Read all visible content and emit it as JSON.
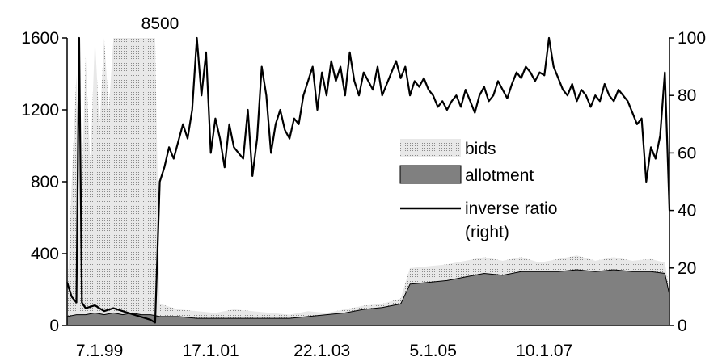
{
  "chart_data": {
    "type": "area",
    "title": "",
    "xlabel": "",
    "ylabel": "",
    "x_ticks": [
      "7.1.99",
      "17.1.01",
      "22.1.03",
      "5.1.05",
      "10.1.07"
    ],
    "y_left": {
      "min": 0,
      "max": 1600,
      "ticks": [
        0,
        400,
        800,
        1200,
        1600
      ]
    },
    "y_right": {
      "min": 0,
      "max": 100,
      "ticks": [
        0,
        20,
        40,
        60,
        80,
        100
      ]
    },
    "annotation": "8500",
    "legend": [
      "bids",
      "allotment",
      "inverse ratio\n(right)"
    ],
    "legend_lines": [
      "bids",
      "allotment",
      "inverse ratio",
      "(right)"
    ],
    "series": [
      {
        "name": "bids",
        "axis": "left",
        "color": "#c0c0c0",
        "points": [
          [
            0,
            100
          ],
          [
            0.5,
            800
          ],
          [
            1,
            1400
          ],
          [
            1.5,
            600
          ],
          [
            2,
            1500
          ],
          [
            2.5,
            900
          ],
          [
            3,
            1600
          ],
          [
            3.5,
            1100
          ],
          [
            4,
            1600
          ],
          [
            4.5,
            1200
          ],
          [
            5,
            1600
          ],
          [
            5.5,
            1600
          ],
          [
            6,
            1600
          ],
          [
            6.5,
            1600
          ],
          [
            7,
            1600
          ],
          [
            7.5,
            1600
          ],
          [
            8,
            1600
          ],
          [
            8.5,
            1600
          ],
          [
            9,
            1600
          ],
          [
            9.5,
            1600
          ],
          [
            10,
            120
          ],
          [
            12,
            90
          ],
          [
            14,
            80
          ],
          [
            16,
            70
          ],
          [
            18,
            90
          ],
          [
            20,
            80
          ],
          [
            22,
            70
          ],
          [
            24,
            60
          ],
          [
            26,
            80
          ],
          [
            28,
            70
          ],
          [
            30,
            90
          ],
          [
            32,
            110
          ],
          [
            34,
            120
          ],
          [
            36,
            150
          ],
          [
            37,
            320
          ],
          [
            39,
            330
          ],
          [
            41,
            340
          ],
          [
            43,
            360
          ],
          [
            45,
            380
          ],
          [
            47,
            360
          ],
          [
            49,
            380
          ],
          [
            51,
            350
          ],
          [
            53,
            370
          ],
          [
            55,
            390
          ],
          [
            57,
            360
          ],
          [
            59,
            380
          ],
          [
            61,
            360
          ],
          [
            63,
            370
          ],
          [
            64.5,
            350
          ],
          [
            65,
            200
          ]
        ]
      },
      {
        "name": "allotment",
        "axis": "left",
        "color": "#808080",
        "points": [
          [
            0,
            50
          ],
          [
            1,
            60
          ],
          [
            2,
            60
          ],
          [
            3,
            70
          ],
          [
            4,
            60
          ],
          [
            5,
            70
          ],
          [
            6,
            60
          ],
          [
            7,
            70
          ],
          [
            8,
            60
          ],
          [
            9,
            60
          ],
          [
            10,
            50
          ],
          [
            12,
            50
          ],
          [
            14,
            40
          ],
          [
            16,
            40
          ],
          [
            18,
            40
          ],
          [
            20,
            40
          ],
          [
            22,
            40
          ],
          [
            24,
            40
          ],
          [
            26,
            50
          ],
          [
            28,
            60
          ],
          [
            30,
            70
          ],
          [
            32,
            90
          ],
          [
            34,
            100
          ],
          [
            36,
            120
          ],
          [
            37,
            230
          ],
          [
            39,
            240
          ],
          [
            41,
            250
          ],
          [
            43,
            270
          ],
          [
            45,
            290
          ],
          [
            47,
            280
          ],
          [
            49,
            300
          ],
          [
            51,
            300
          ],
          [
            53,
            300
          ],
          [
            55,
            310
          ],
          [
            57,
            300
          ],
          [
            59,
            310
          ],
          [
            61,
            300
          ],
          [
            63,
            300
          ],
          [
            64.5,
            290
          ],
          [
            65,
            170
          ]
        ]
      },
      {
        "name": "inverse ratio (right)",
        "axis": "right",
        "color": "#000000",
        "points": [
          [
            0,
            15
          ],
          [
            0.5,
            10
          ],
          [
            1,
            8
          ],
          [
            1.3,
            100
          ],
          [
            1.6,
            8
          ],
          [
            2,
            6
          ],
          [
            3,
            7
          ],
          [
            4,
            5
          ],
          [
            5,
            6
          ],
          [
            6,
            5
          ],
          [
            7,
            4
          ],
          [
            8,
            3
          ],
          [
            9,
            2
          ],
          [
            9.5,
            1
          ],
          [
            10,
            50
          ],
          [
            10.5,
            55
          ],
          [
            11,
            62
          ],
          [
            11.5,
            58
          ],
          [
            12,
            64
          ],
          [
            12.5,
            70
          ],
          [
            13,
            65
          ],
          [
            13.5,
            75
          ],
          [
            14,
            100
          ],
          [
            14.5,
            80
          ],
          [
            15,
            95
          ],
          [
            15.5,
            60
          ],
          [
            16,
            72
          ],
          [
            16.5,
            65
          ],
          [
            17,
            55
          ],
          [
            17.5,
            70
          ],
          [
            18,
            62
          ],
          [
            18.5,
            60
          ],
          [
            19,
            58
          ],
          [
            19.5,
            75
          ],
          [
            20,
            52
          ],
          [
            20.5,
            65
          ],
          [
            21,
            90
          ],
          [
            21.5,
            80
          ],
          [
            22,
            60
          ],
          [
            22.5,
            70
          ],
          [
            23,
            75
          ],
          [
            23.5,
            68
          ],
          [
            24,
            65
          ],
          [
            24.5,
            72
          ],
          [
            25,
            70
          ],
          [
            25.5,
            80
          ],
          [
            26,
            85
          ],
          [
            26.5,
            90
          ],
          [
            27,
            75
          ],
          [
            27.5,
            88
          ],
          [
            28,
            80
          ],
          [
            28.5,
            92
          ],
          [
            29,
            85
          ],
          [
            29.5,
            90
          ],
          [
            30,
            80
          ],
          [
            30.5,
            95
          ],
          [
            31,
            85
          ],
          [
            31.5,
            80
          ],
          [
            32,
            88
          ],
          [
            32.5,
            85
          ],
          [
            33,
            82
          ],
          [
            33.5,
            90
          ],
          [
            34,
            80
          ],
          [
            34.5,
            84
          ],
          [
            35,
            88
          ],
          [
            35.5,
            92
          ],
          [
            36,
            86
          ],
          [
            36.5,
            90
          ],
          [
            37,
            80
          ],
          [
            37.5,
            85
          ],
          [
            38,
            83
          ],
          [
            38.5,
            86
          ],
          [
            39,
            82
          ],
          [
            39.5,
            80
          ],
          [
            40,
            76
          ],
          [
            40.5,
            78
          ],
          [
            41,
            75
          ],
          [
            41.5,
            78
          ],
          [
            42,
            80
          ],
          [
            42.5,
            76
          ],
          [
            43,
            82
          ],
          [
            43.5,
            78
          ],
          [
            44,
            74
          ],
          [
            44.5,
            80
          ],
          [
            45,
            83
          ],
          [
            45.5,
            78
          ],
          [
            46,
            80
          ],
          [
            46.5,
            85
          ],
          [
            47,
            82
          ],
          [
            47.5,
            79
          ],
          [
            48,
            84
          ],
          [
            48.5,
            88
          ],
          [
            49,
            86
          ],
          [
            49.5,
            90
          ],
          [
            50,
            88
          ],
          [
            50.5,
            85
          ],
          [
            51,
            88
          ],
          [
            51.5,
            87
          ],
          [
            52,
            100
          ],
          [
            52.5,
            90
          ],
          [
            53,
            86
          ],
          [
            53.5,
            82
          ],
          [
            54,
            80
          ],
          [
            54.5,
            84
          ],
          [
            55,
            78
          ],
          [
            55.5,
            82
          ],
          [
            56,
            80
          ],
          [
            56.5,
            76
          ],
          [
            57,
            80
          ],
          [
            57.5,
            78
          ],
          [
            58,
            84
          ],
          [
            58.5,
            80
          ],
          [
            59,
            78
          ],
          [
            59.5,
            82
          ],
          [
            60,
            80
          ],
          [
            60.5,
            78
          ],
          [
            61,
            74
          ],
          [
            61.5,
            70
          ],
          [
            62,
            72
          ],
          [
            62.5,
            50
          ],
          [
            63,
            62
          ],
          [
            63.5,
            58
          ],
          [
            64,
            66
          ],
          [
            64.5,
            88
          ],
          [
            65,
            40
          ]
        ]
      }
    ],
    "grid": false,
    "legend_position": "center-right"
  }
}
